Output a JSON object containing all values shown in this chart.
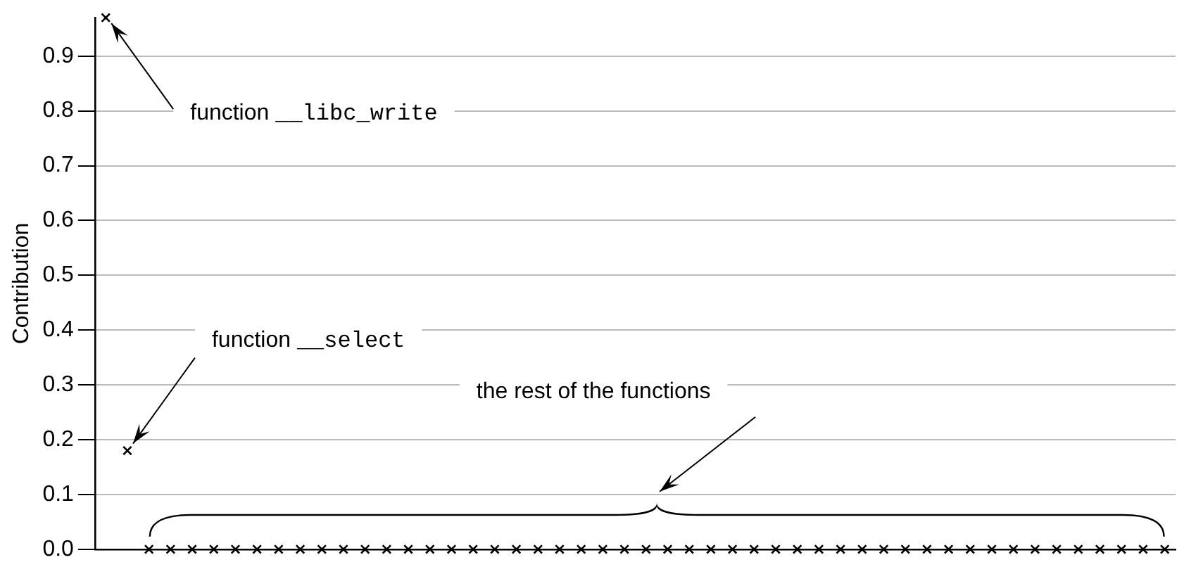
{
  "chart_data": {
    "type": "scatter",
    "ylabel": "Contribution",
    "categories": [
      null,
      null,
      null,
      null,
      null,
      null,
      null,
      null,
      null,
      null,
      null,
      null,
      null,
      null,
      null,
      null,
      null,
      null,
      null,
      null,
      null,
      null,
      null,
      null,
      null,
      null,
      null,
      null,
      null,
      null,
      null,
      null,
      null,
      null,
      null,
      null,
      null,
      null,
      null,
      null,
      null,
      null,
      null,
      null,
      null,
      null,
      null,
      null,
      null,
      null
    ],
    "values": [
      0.97,
      0.18,
      0,
      0,
      0,
      0,
      0,
      0,
      0,
      0,
      0,
      0,
      0,
      0,
      0,
      0,
      0,
      0,
      0,
      0,
      0,
      0,
      0,
      0,
      0,
      0,
      0,
      0,
      0,
      0,
      0,
      0,
      0,
      0,
      0,
      0,
      0,
      0,
      0,
      0,
      0,
      0,
      0,
      0,
      0,
      0,
      0,
      0,
      0,
      0
    ],
    "color": "#000000",
    "marker": "cross",
    "ylim": [
      0,
      0.97
    ],
    "yticks": [
      {
        "value": 0,
        "label": "0.0"
      },
      0.1,
      0.2,
      0.3,
      0.4,
      0.5,
      0.6,
      0.7,
      0.8,
      0.9
    ],
    "grid": "y",
    "legend": false,
    "tick_labels": "y",
    "annotations": [
      "function __libc_write",
      "function __select",
      "the rest of the functions"
    ]
  }
}
